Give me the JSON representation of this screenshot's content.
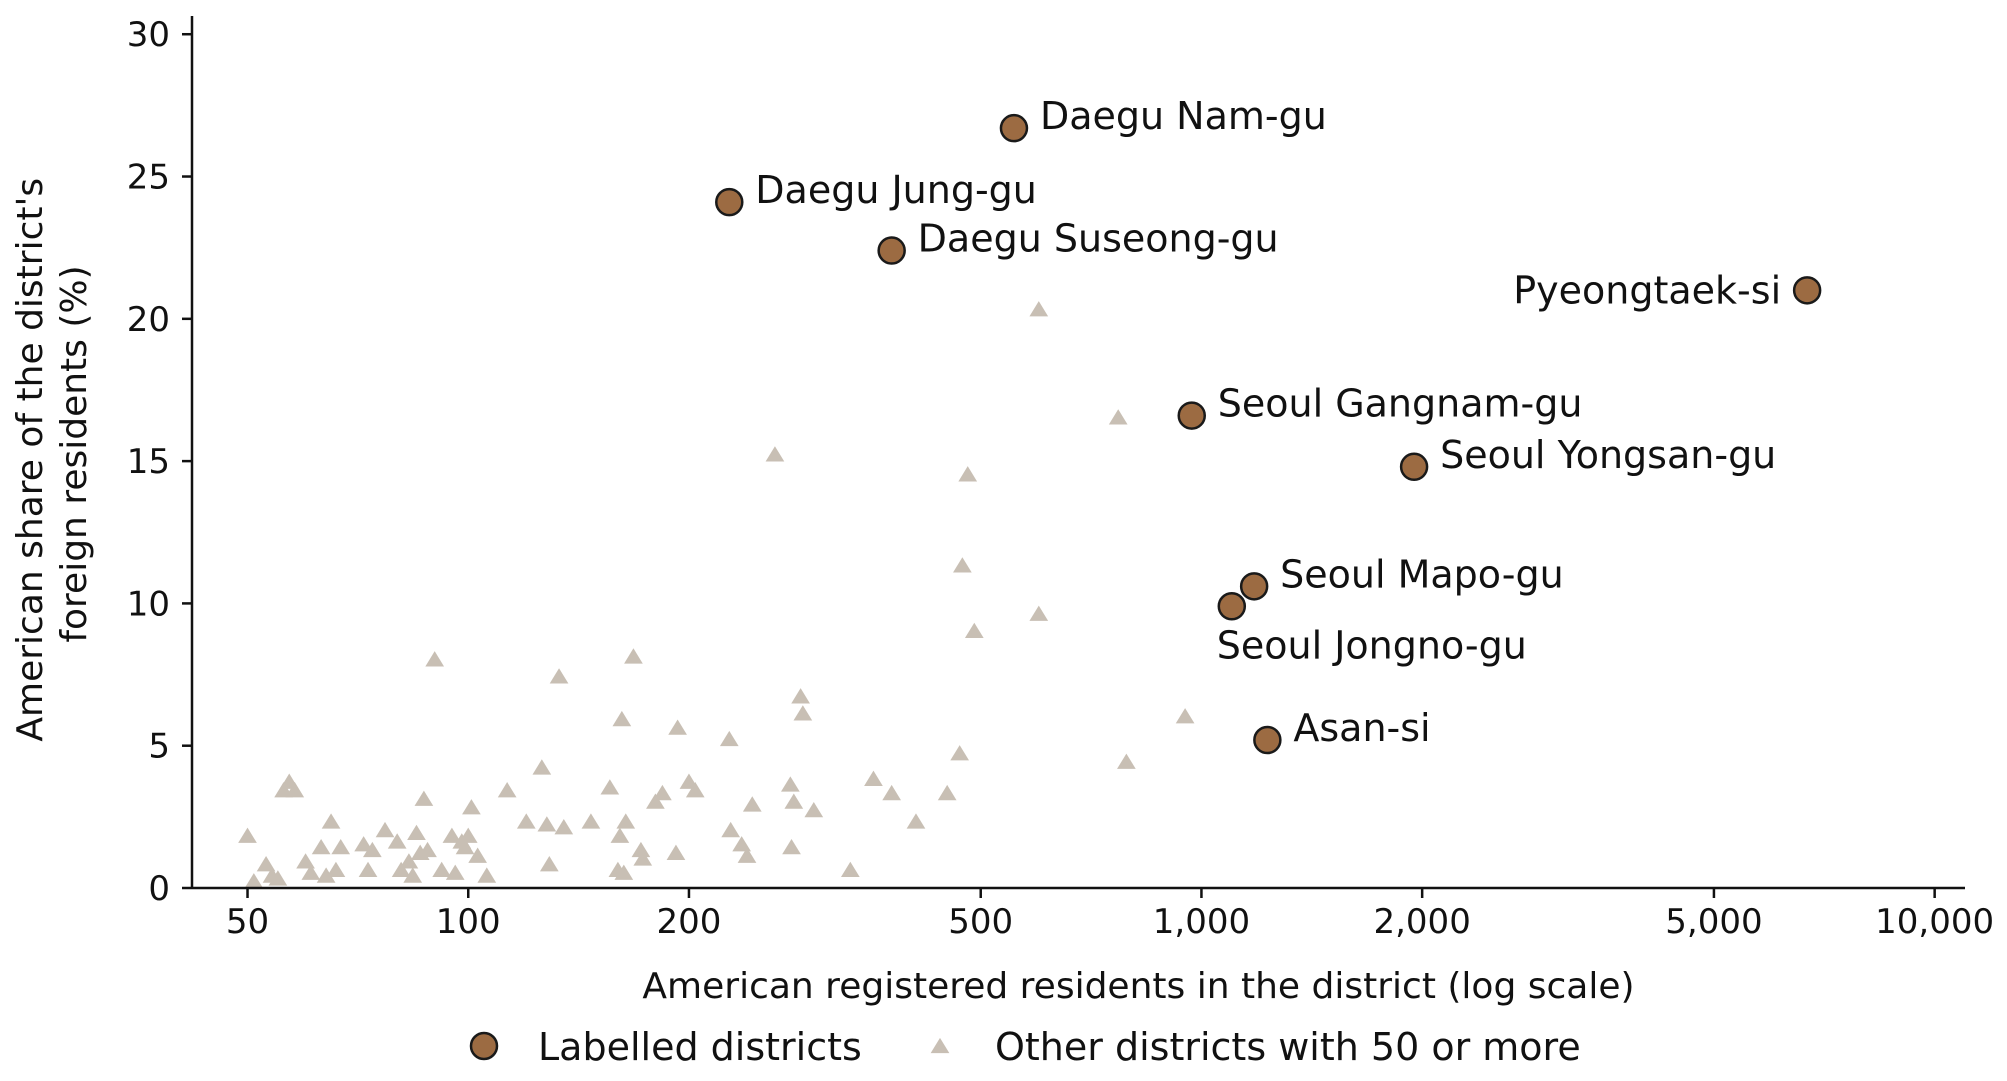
{
  "chart_data": {
    "type": "scatter",
    "xlabel": "American registered residents in the district (log scale)",
    "ylabel_lines": [
      "American share of the district's",
      "foreign residents (%)"
    ],
    "x_scale": "log",
    "xlim": [
      42,
      11000
    ],
    "ylim": [
      0,
      30.5
    ],
    "x_ticks": [
      50,
      100,
      200,
      500,
      1000,
      2000,
      5000,
      10000
    ],
    "x_tick_labels": [
      "50",
      "100",
      "200",
      "500",
      "1,000",
      "2,000",
      "5,000",
      "10,000"
    ],
    "y_ticks": [
      0,
      5,
      10,
      15,
      20,
      25,
      30
    ],
    "y_tick_labels": [
      "0",
      "5",
      "10",
      "15",
      "20",
      "25",
      "30"
    ],
    "grid": false,
    "legend_placement": "bottom-center",
    "colors": {
      "labelled": "#9c6b42",
      "other": "#c8bfb4",
      "edge": "#1a1a1a"
    },
    "series": [
      {
        "name": "Labelled districts",
        "marker": "circle",
        "points": [
          {
            "label": "Daegu Nam-gu",
            "x": 555,
            "y": 26.7,
            "label_side": "right"
          },
          {
            "label": "Daegu Jung-gu",
            "x": 227,
            "y": 24.1,
            "label_side": "right"
          },
          {
            "label": "Daegu Suseong-gu",
            "x": 378,
            "y": 22.4,
            "label_side": "right"
          },
          {
            "label": "Pyeongtaek-si",
            "x": 6700,
            "y": 21.0,
            "label_side": "left"
          },
          {
            "label": "Seoul Gangnam-gu",
            "x": 970,
            "y": 16.6,
            "label_side": "right"
          },
          {
            "label": "Seoul Yongsan-gu",
            "x": 1950,
            "y": 14.8,
            "label_side": "right"
          },
          {
            "label": "Seoul Mapo-gu",
            "x": 1180,
            "y": 10.6,
            "label_side": "right"
          },
          {
            "label": "Seoul Jongno-gu",
            "x": 1100,
            "y": 9.9,
            "label_side": "below"
          },
          {
            "label": "Asan-si",
            "x": 1230,
            "y": 5.2,
            "label_side": "right"
          }
        ]
      },
      {
        "name": "Other districts with 50 or more",
        "marker": "triangle",
        "points": [
          {
            "x": 50,
            "y": 1.8
          },
          {
            "x": 51,
            "y": 0.2
          },
          {
            "x": 53,
            "y": 0.8
          },
          {
            "x": 54,
            "y": 0.4
          },
          {
            "x": 55,
            "y": 0.3
          },
          {
            "x": 56,
            "y": 3.4
          },
          {
            "x": 57,
            "y": 3.7
          },
          {
            "x": 58,
            "y": 3.4
          },
          {
            "x": 60,
            "y": 0.9
          },
          {
            "x": 61,
            "y": 0.5
          },
          {
            "x": 63,
            "y": 1.4
          },
          {
            "x": 64,
            "y": 0.4
          },
          {
            "x": 65,
            "y": 2.3
          },
          {
            "x": 66,
            "y": 0.6
          },
          {
            "x": 67,
            "y": 1.4
          },
          {
            "x": 72,
            "y": 1.5
          },
          {
            "x": 73,
            "y": 0.6
          },
          {
            "x": 74,
            "y": 1.3
          },
          {
            "x": 77,
            "y": 2.0
          },
          {
            "x": 80,
            "y": 1.6
          },
          {
            "x": 81,
            "y": 0.6
          },
          {
            "x": 83,
            "y": 0.9
          },
          {
            "x": 84,
            "y": 0.4
          },
          {
            "x": 85,
            "y": 1.9
          },
          {
            "x": 86,
            "y": 1.2
          },
          {
            "x": 87,
            "y": 3.1
          },
          {
            "x": 88,
            "y": 1.3
          },
          {
            "x": 90,
            "y": 8.0
          },
          {
            "x": 92,
            "y": 0.6
          },
          {
            "x": 95,
            "y": 1.8
          },
          {
            "x": 96,
            "y": 0.5
          },
          {
            "x": 98,
            "y": 1.6
          },
          {
            "x": 99,
            "y": 1.4
          },
          {
            "x": 100,
            "y": 1.8
          },
          {
            "x": 101,
            "y": 2.8
          },
          {
            "x": 103,
            "y": 1.1
          },
          {
            "x": 106,
            "y": 0.4
          },
          {
            "x": 113,
            "y": 3.4
          },
          {
            "x": 120,
            "y": 2.3
          },
          {
            "x": 126,
            "y": 4.2
          },
          {
            "x": 128,
            "y": 2.2
          },
          {
            "x": 129,
            "y": 0.8
          },
          {
            "x": 133,
            "y": 7.4
          },
          {
            "x": 135,
            "y": 2.1
          },
          {
            "x": 147,
            "y": 2.3
          },
          {
            "x": 156,
            "y": 3.5
          },
          {
            "x": 160,
            "y": 0.6
          },
          {
            "x": 161,
            "y": 1.8
          },
          {
            "x": 162,
            "y": 5.9
          },
          {
            "x": 163,
            "y": 0.5
          },
          {
            "x": 164,
            "y": 2.3
          },
          {
            "x": 168,
            "y": 8.1
          },
          {
            "x": 172,
            "y": 1.3
          },
          {
            "x": 173,
            "y": 1.0
          },
          {
            "x": 180,
            "y": 3.0
          },
          {
            "x": 184,
            "y": 3.3
          },
          {
            "x": 192,
            "y": 1.2
          },
          {
            "x": 193,
            "y": 5.6
          },
          {
            "x": 200,
            "y": 3.7
          },
          {
            "x": 204,
            "y": 3.4
          },
          {
            "x": 227,
            "y": 5.2
          },
          {
            "x": 228,
            "y": 2.0
          },
          {
            "x": 236,
            "y": 1.5
          },
          {
            "x": 240,
            "y": 1.1
          },
          {
            "x": 244,
            "y": 2.9
          },
          {
            "x": 262,
            "y": 15.2
          },
          {
            "x": 275,
            "y": 3.6
          },
          {
            "x": 276,
            "y": 1.4
          },
          {
            "x": 278,
            "y": 3.0
          },
          {
            "x": 284,
            "y": 6.7
          },
          {
            "x": 286,
            "y": 6.1
          },
          {
            "x": 296,
            "y": 2.7
          },
          {
            "x": 332,
            "y": 0.6
          },
          {
            "x": 357,
            "y": 3.8
          },
          {
            "x": 378,
            "y": 3.3
          },
          {
            "x": 408,
            "y": 2.3
          },
          {
            "x": 450,
            "y": 3.3
          },
          {
            "x": 468,
            "y": 4.7
          },
          {
            "x": 472,
            "y": 11.3
          },
          {
            "x": 480,
            "y": 14.5
          },
          {
            "x": 490,
            "y": 9.0
          },
          {
            "x": 600,
            "y": 20.3
          },
          {
            "x": 600,
            "y": 9.6
          },
          {
            "x": 770,
            "y": 16.5
          },
          {
            "x": 790,
            "y": 4.4
          },
          {
            "x": 950,
            "y": 6.0
          }
        ]
      }
    ]
  }
}
